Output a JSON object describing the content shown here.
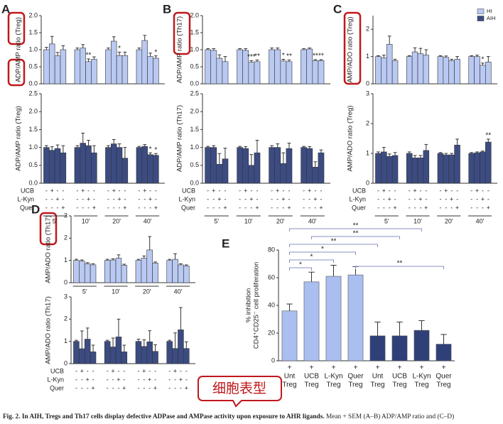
{
  "chart_data": [
    {
      "type": "bar",
      "panel": "A",
      "ylabel": "ADP/AMP ratio (Treg)",
      "color": "#b9c9f2",
      "ylim": [
        0,
        2
      ],
      "yticks": [
        {
          "value": 0,
          "label": "0.0"
        },
        0.5,
        {
          "value": 1,
          "label": "1.0"
        },
        1.5,
        {
          "value": 2,
          "label": "2.0"
        }
      ],
      "values": [
        1.0,
        1.17,
        0.82,
        1.0,
        1.0,
        1.05,
        0.65,
        0.72,
        1.0,
        1.25,
        0.83,
        0.83,
        1.0,
        1.27,
        0.8,
        0.75
      ],
      "errors": [
        0.07,
        0.22,
        0.1,
        0.12,
        0.05,
        0.1,
        0.08,
        0.07,
        0.05,
        0.13,
        0.1,
        0.1,
        0.05,
        0.15,
        0.1,
        0.07
      ],
      "stars": [
        {
          "index": 6,
          "text": "**"
        },
        {
          "index": 10,
          "text": "*"
        },
        {
          "index": 15,
          "text": "*"
        }
      ]
    },
    {
      "type": "bar",
      "ylabel": "ADP/AMP ratio (Treg)",
      "color": "#3c4c82",
      "ylim": [
        0,
        2.5
      ],
      "yticks": [
        {
          "value": 0,
          "label": "0.0"
        },
        0.5,
        {
          "value": 1,
          "label": "1.0"
        },
        1.5,
        {
          "value": 2,
          "label": "2.0"
        },
        2.5
      ],
      "values": [
        1.0,
        0.92,
        0.97,
        0.85,
        1.0,
        1.12,
        1.05,
        0.85,
        1.0,
        1.1,
        1.0,
        0.7,
        1.0,
        1.03,
        0.8,
        0.78
      ],
      "errors": [
        0.05,
        0.1,
        0.1,
        0.2,
        0.05,
        0.28,
        0.15,
        0.2,
        0.05,
        0.12,
        0.1,
        0.3,
        0.03,
        0.05,
        0.05,
        0.05
      ],
      "stars": [
        {
          "index": 14,
          "text": "*"
        },
        {
          "index": 15,
          "text": "*"
        }
      ],
      "conditions": [
        {
          "name": "UCB",
          "signs": [
            "-",
            "+",
            "-",
            "-"
          ]
        },
        {
          "name": "L-Kyn",
          "signs": [
            "-",
            "-",
            "+",
            "-"
          ]
        },
        {
          "name": "Quer",
          "signs": [
            "-",
            "-",
            "-",
            "+"
          ]
        }
      ],
      "groups": [
        "5'",
        "10'",
        "20'",
        "40'"
      ]
    },
    {
      "type": "bar",
      "panel": "B",
      "ylabel": "ADP/AMP ratio (Th17)",
      "color": "#b9c9f2",
      "ylim": [
        0,
        2
      ],
      "yticks": [
        {
          "value": 0,
          "label": "0.0"
        },
        0.5,
        {
          "value": 1,
          "label": "1.0"
        },
        1.5,
        {
          "value": 2,
          "label": "2.0"
        }
      ],
      "values": [
        1.0,
        0.98,
        0.75,
        0.65,
        1.0,
        0.98,
        0.63,
        0.65,
        1.0,
        1.0,
        0.67,
        0.65,
        1.0,
        1.02,
        0.68,
        0.68
      ],
      "errors": [
        0.03,
        0.05,
        0.1,
        0.15,
        0.03,
        0.05,
        0.05,
        0.05,
        0.05,
        0.05,
        0.05,
        0.05,
        0.03,
        0.03,
        0.03,
        0.03
      ],
      "stars": [
        {
          "index": 6,
          "text": "***"
        },
        {
          "index": 7,
          "text": "**"
        },
        {
          "index": 10,
          "text": "*"
        },
        {
          "index": 11,
          "text": "**"
        },
        {
          "index": 14,
          "text": "**"
        },
        {
          "index": 15,
          "text": "**"
        }
      ]
    },
    {
      "type": "bar",
      "ylabel": "ADP/AMP ratio (Th17)",
      "color": "#3c4c82",
      "ylim": [
        0,
        2.5
      ],
      "yticks": [
        {
          "value": 0,
          "label": "0.0"
        },
        0.5,
        {
          "value": 1,
          "label": "1.0"
        },
        1.5,
        {
          "value": 2,
          "label": "2.0"
        },
        2.5
      ],
      "values": [
        1.0,
        1.0,
        0.53,
        0.68,
        1.0,
        0.97,
        0.5,
        0.85,
        1.0,
        1.0,
        0.55,
        0.97,
        1.0,
        0.97,
        0.45,
        0.85
      ],
      "errors": [
        0.03,
        0.05,
        0.3,
        0.3,
        0.03,
        0.05,
        0.3,
        0.35,
        0.05,
        0.1,
        0.3,
        0.15,
        0.03,
        0.05,
        0.15,
        0.08
      ],
      "conditions": [
        {
          "name": "UCB",
          "signs": [
            "-",
            "+",
            "-",
            "-"
          ]
        },
        {
          "name": "L-Kyn",
          "signs": [
            "-",
            "-",
            "+",
            "-"
          ]
        },
        {
          "name": "Quer",
          "signs": [
            "-",
            "-",
            "-",
            "+"
          ]
        }
      ],
      "groups": [
        "5'",
        "10'",
        "20'",
        "40'"
      ]
    },
    {
      "type": "bar",
      "panel": "C",
      "ylabel": "AMP/ADO ratio (Treg)",
      "color": "#b9c9f2",
      "ylim": [
        0,
        2.5
      ],
      "yticks": [
        0,
        1,
        2
      ],
      "values": [
        1.0,
        0.95,
        1.45,
        0.85,
        1.0,
        1.17,
        1.1,
        1.05,
        1.0,
        0.97,
        0.85,
        0.9,
        1.0,
        1.0,
        0.68,
        0.8
      ],
      "errors": [
        0.03,
        0.1,
        0.3,
        0.05,
        0.03,
        0.15,
        0.2,
        0.2,
        0.03,
        0.05,
        0.05,
        0.1,
        0.03,
        0.05,
        0.08,
        0.2
      ],
      "stars": [
        {
          "index": 14,
          "text": "*"
        }
      ]
    },
    {
      "type": "bar",
      "ylabel": "AMP/ADO ratio (Treg)",
      "color": "#3c4c82",
      "ylim": [
        0,
        3
      ],
      "yticks": [
        0,
        1,
        2,
        3
      ],
      "values": [
        1.0,
        1.05,
        0.9,
        0.93,
        1.0,
        0.85,
        0.85,
        1.1,
        1.0,
        0.95,
        0.95,
        1.28,
        1.0,
        1.02,
        1.05,
        1.38
      ],
      "errors": [
        0.05,
        0.15,
        0.08,
        0.1,
        0.05,
        0.08,
        0.08,
        0.2,
        0.03,
        0.05,
        0.05,
        0.2,
        0.03,
        0.03,
        0.03,
        0.1
      ],
      "stars": [
        {
          "index": 15,
          "text": "**"
        }
      ],
      "conditions": [
        {
          "name": "UCB",
          "signs": [
            "-",
            "+",
            "-",
            "-"
          ]
        },
        {
          "name": "L-Kyn",
          "signs": [
            "-",
            "-",
            "+",
            "-"
          ]
        },
        {
          "name": "Quer",
          "signs": [
            "-",
            "-",
            "-",
            "+"
          ]
        }
      ],
      "groups": [
        "5'",
        "10'",
        "20'",
        "40'"
      ]
    },
    {
      "type": "bar",
      "panel": "D",
      "ylabel": "AMP/ADO ratio (Th17)",
      "color": "#b9c9f2",
      "ylim": [
        0,
        3
      ],
      "yticks": [
        0,
        1,
        2,
        3
      ],
      "values": [
        1.0,
        0.97,
        0.85,
        0.8,
        1.0,
        1.02,
        1.1,
        0.78,
        1.0,
        1.1,
        1.47,
        0.88,
        1.0,
        1.05,
        0.8,
        0.75
      ],
      "errors": [
        0.05,
        0.05,
        0.05,
        0.05,
        0.05,
        0.05,
        0.15,
        0.05,
        0.05,
        0.1,
        0.6,
        0.05,
        0.05,
        0.25,
        0.05,
        0.05
      ],
      "groups": [
        "5'",
        "10'",
        "20'",
        "40'"
      ]
    },
    {
      "type": "bar",
      "ylabel": "AMP/ADO ratio (Th17)",
      "color": "#3c4c82",
      "ylim": [
        0,
        3
      ],
      "yticks": [
        0,
        1,
        2,
        3
      ],
      "values": [
        1.0,
        0.67,
        1.1,
        0.53,
        1.0,
        0.75,
        1.2,
        0.53,
        1.0,
        0.77,
        0.98,
        0.55,
        1.0,
        0.68,
        1.52,
        0.68
      ],
      "errors": [
        0.05,
        0.8,
        0.5,
        0.3,
        0.05,
        0.4,
        0.8,
        0.3,
        0.1,
        0.3,
        0.5,
        0.3,
        0.05,
        0.7,
        1.0,
        0.3
      ],
      "conditions": [
        {
          "name": "UCB",
          "signs": [
            "-",
            "+",
            "-",
            "-"
          ]
        },
        {
          "name": "L-Kyn",
          "signs": [
            "-",
            "-",
            "+",
            "-"
          ]
        },
        {
          "name": "Quer",
          "signs": [
            "-",
            "-",
            "-",
            "+"
          ]
        }
      ]
    },
    {
      "type": "bar",
      "panel": "E",
      "ylabel": [
        "% inhibition",
        "CD4⁺CD25⁻ cell proliferation"
      ],
      "ylim": [
        0,
        80
      ],
      "yticks": [
        0,
        20,
        40,
        60,
        80
      ],
      "categories": [
        [
          "Unt",
          "Treg"
        ],
        [
          "UCB",
          "Treg"
        ],
        [
          "L-Kyn",
          "Treg"
        ],
        [
          "Quer",
          "Treg"
        ],
        [
          "Unt",
          "Treg"
        ],
        [
          "UCB",
          "Treg"
        ],
        [
          "L-Kyn",
          "Treg"
        ],
        [
          "Quer",
          "Treg"
        ]
      ],
      "signs": [
        "+",
        "+",
        "+",
        "+",
        "+",
        "+",
        "+",
        "+"
      ],
      "values": [
        36,
        57,
        61,
        62,
        18,
        18,
        22,
        12
      ],
      "errors": [
        5,
        7,
        8,
        6,
        10,
        10,
        7,
        7
      ],
      "colors": [
        "#aabef0",
        "#aabef0",
        "#aabef0",
        "#aabef0",
        "#2f4079",
        "#2f4079",
        "#2f4079",
        "#2f4079"
      ],
      "brackets": [
        {
          "from": 0,
          "to": 1,
          "text": "*"
        },
        {
          "from": 0,
          "to": 2,
          "text": "*"
        },
        {
          "from": 0,
          "to": 3,
          "text": "*"
        },
        {
          "from": 0,
          "to": 4,
          "text": "**"
        },
        {
          "from": 1,
          "to": 5,
          "text": "**"
        },
        {
          "from": 0,
          "to": 6,
          "text": "**"
        },
        {
          "from": 3,
          "to": 7,
          "text": "**"
        }
      ]
    }
  ],
  "legend": [
    {
      "name": "HI",
      "color": "#b9c9f2"
    },
    {
      "name": "AIH",
      "color": "#3c4c82"
    }
  ],
  "annotation": "细胞表型",
  "caption": {
    "bold": "Fig. 2. In AIH, Tregs and Th17 cells display defective ADPase and AMPase activity upon exposure to AHR ligands.",
    "rest": " Mean + SEM (A–B) ADP/AMP ratio and (C–D)"
  }
}
